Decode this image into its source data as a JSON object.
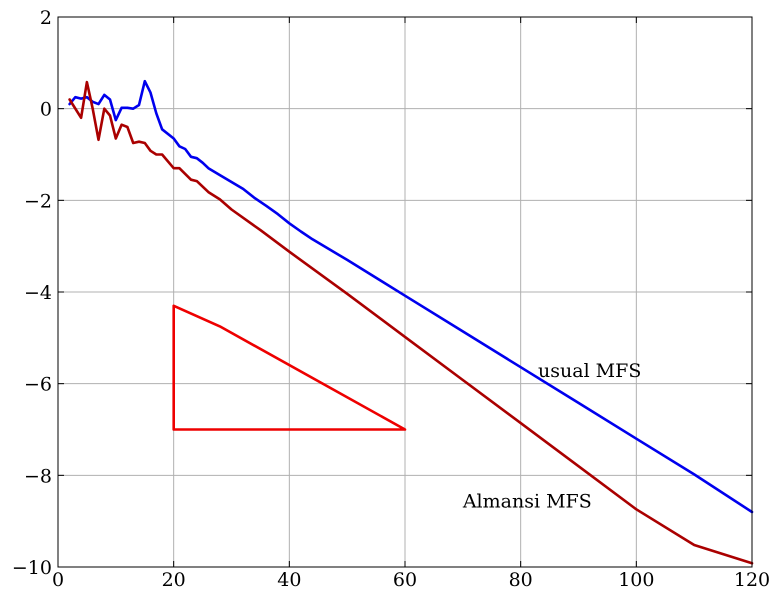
{
  "chart_data": {
    "type": "line",
    "title": "",
    "xlabel": "",
    "ylabel": "",
    "xlim": [
      0,
      120
    ],
    "ylim": [
      -10,
      2
    ],
    "grid": true,
    "x_ticks": [
      0,
      20,
      40,
      60,
      80,
      100,
      120
    ],
    "y_ticks": [
      2,
      0,
      -2,
      -4,
      -6,
      -8,
      -10
    ],
    "x_tick_labels": [
      "0",
      "20",
      "40",
      "60",
      "80",
      "100",
      "120"
    ],
    "y_tick_labels": [
      "2",
      "0",
      "−2",
      "−4",
      "−6",
      "−8",
      "−10"
    ],
    "series": [
      {
        "name": "usual MFS",
        "color": "#0000ee",
        "points": [
          [
            2,
            0.1
          ],
          [
            3,
            0.25
          ],
          [
            4,
            0.22
          ],
          [
            5,
            0.25
          ],
          [
            6,
            0.15
          ],
          [
            7,
            0.1
          ],
          [
            8,
            0.3
          ],
          [
            9,
            0.2
          ],
          [
            10,
            -0.25
          ],
          [
            11,
            0.02
          ],
          [
            12,
            0.02
          ],
          [
            13,
            0.0
          ],
          [
            14,
            0.08
          ],
          [
            15,
            0.6
          ],
          [
            16,
            0.35
          ],
          [
            17,
            -0.1
          ],
          [
            18,
            -0.45
          ],
          [
            20,
            -0.65
          ],
          [
            21,
            -0.82
          ],
          [
            22,
            -0.88
          ],
          [
            23,
            -1.05
          ],
          [
            24,
            -1.08
          ],
          [
            25,
            -1.18
          ],
          [
            26,
            -1.3
          ],
          [
            28,
            -1.45
          ],
          [
            30,
            -1.6
          ],
          [
            32,
            -1.75
          ],
          [
            34,
            -1.95
          ],
          [
            36,
            -2.12
          ],
          [
            38,
            -2.3
          ],
          [
            40,
            -2.5
          ],
          [
            42,
            -2.68
          ],
          [
            44,
            -2.85
          ],
          [
            50,
            -3.3
          ],
          [
            60,
            -4.08
          ],
          [
            70,
            -4.86
          ],
          [
            80,
            -5.64
          ],
          [
            90,
            -6.42
          ],
          [
            100,
            -7.2
          ],
          [
            110,
            -7.98
          ],
          [
            120,
            -8.8
          ]
        ]
      },
      {
        "name": "Almansi MFS",
        "color": "#aa0000",
        "points": [
          [
            2,
            0.2
          ],
          [
            4,
            -0.2
          ],
          [
            5,
            0.58
          ],
          [
            6,
            0.0
          ],
          [
            7,
            -0.68
          ],
          [
            8,
            0.0
          ],
          [
            9,
            -0.15
          ],
          [
            10,
            -0.65
          ],
          [
            11,
            -0.35
          ],
          [
            12,
            -0.4
          ],
          [
            13,
            -0.75
          ],
          [
            14,
            -0.72
          ],
          [
            15,
            -0.75
          ],
          [
            16,
            -0.92
          ],
          [
            17,
            -1.0
          ],
          [
            18,
            -1.0
          ],
          [
            20,
            -1.3
          ],
          [
            21,
            -1.3
          ],
          [
            23,
            -1.55
          ],
          [
            24,
            -1.58
          ],
          [
            25,
            -1.7
          ],
          [
            26,
            -1.82
          ],
          [
            28,
            -1.98
          ],
          [
            30,
            -2.2
          ],
          [
            35,
            -2.65
          ],
          [
            40,
            -3.12
          ],
          [
            50,
            -4.04
          ],
          [
            60,
            -4.98
          ],
          [
            70,
            -5.92
          ],
          [
            80,
            -6.86
          ],
          [
            90,
            -7.8
          ],
          [
            100,
            -8.74
          ],
          [
            110,
            -9.52
          ],
          [
            120,
            -9.92
          ]
        ]
      },
      {
        "name": "",
        "color": "#ee0000",
        "points": [
          [
            20,
            -4.3
          ],
          [
            20,
            -7.0
          ],
          [
            60,
            -7.0
          ],
          [
            28,
            -4.75
          ],
          [
            20,
            -4.3
          ]
        ]
      }
    ],
    "annotations": [
      {
        "text": "usual MFS",
        "x": 83,
        "y": -5.85
      },
      {
        "text": "Almansi MFS",
        "x": 70,
        "y": -8.7
      }
    ]
  }
}
